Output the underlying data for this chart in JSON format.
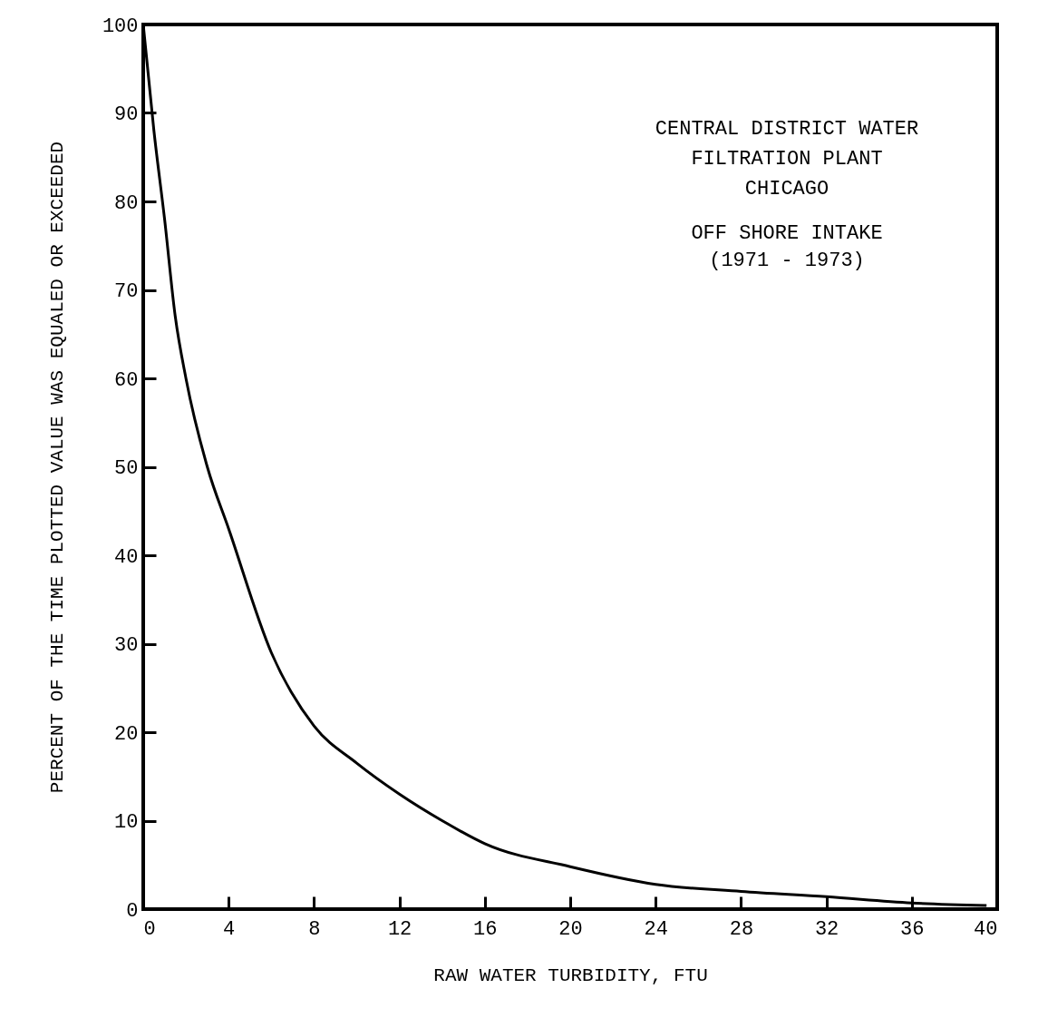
{
  "chart_data": {
    "type": "line",
    "xlabel": "RAW WATER TURBIDITY, FTU",
    "ylabel": "PERCENT OF THE TIME PLOTTED VALUE WAS EQUALED OR EXCEEDED",
    "annotations": [
      "CENTRAL DISTRICT WATER",
      "FILTRATION PLANT",
      "CHICAGO",
      "OFF SHORE INTAKE",
      "(1971 - 1973)"
    ],
    "x": [
      0,
      0.5,
      1,
      1.5,
      2,
      3,
      4,
      6,
      8,
      10,
      12,
      14,
      16,
      20,
      24,
      28,
      32,
      36,
      39.5
    ],
    "series": [
      {
        "color": "#000000",
        "values": [
          100,
          88,
          78,
          67,
          60,
          50,
          43,
          29,
          20.7,
          16.5,
          13,
          10,
          7.4,
          4.8,
          2.8,
          2,
          1.4,
          0.7,
          0.4
        ]
      }
    ],
    "xlim": [
      0,
      40
    ],
    "xticks": [
      0,
      4,
      8,
      12,
      16,
      20,
      24,
      28,
      32,
      36,
      40
    ],
    "ylim": [
      0,
      100
    ],
    "yticks": [
      0,
      10,
      20,
      30,
      40,
      50,
      60,
      70,
      80,
      90,
      100
    ],
    "grid": false,
    "marker": "none",
    "line_style": "solid"
  }
}
